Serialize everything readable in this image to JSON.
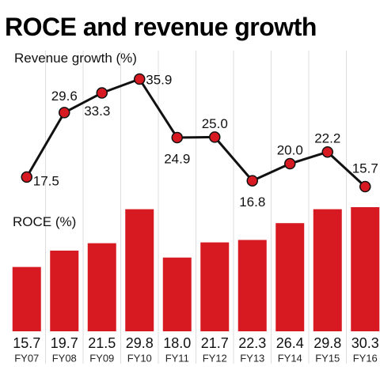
{
  "title": "ROCE and revenue growth",
  "colors": {
    "bar": "#d71a21",
    "dot": "#d71a21",
    "line": "#111111",
    "gridline": "#dddddd",
    "background": "#ffffff"
  },
  "chart_data": [
    {
      "type": "line",
      "ylabel": "Revenue growth (%)",
      "categories": [
        "FY07",
        "FY08",
        "FY09",
        "FY10",
        "FY11",
        "FY12",
        "FY13",
        "FY14",
        "FY15",
        "FY16"
      ],
      "values": [
        17.5,
        29.6,
        33.3,
        35.9,
        24.9,
        25.0,
        16.8,
        20.0,
        22.2,
        15.7
      ],
      "value_labels": [
        "17.5",
        "29.6",
        "33.3",
        "35.9",
        "24.9",
        "25.0",
        "16.8",
        "20.0",
        "22.2",
        "15.7"
      ],
      "grid": "vertical"
    },
    {
      "type": "bar",
      "ylabel": "ROCE (%)",
      "categories": [
        "FY07",
        "FY08",
        "FY09",
        "FY10",
        "FY11",
        "FY12",
        "FY13",
        "FY14",
        "FY15",
        "FY16"
      ],
      "values": [
        15.7,
        19.7,
        21.5,
        29.8,
        18.0,
        21.7,
        22.3,
        26.4,
        29.8,
        30.3
      ],
      "value_labels": [
        "15.7",
        "19.7",
        "21.5",
        "29.8",
        "18.0",
        "21.7",
        "22.3",
        "26.4",
        "29.8",
        "30.3"
      ],
      "grid": "vertical"
    }
  ]
}
